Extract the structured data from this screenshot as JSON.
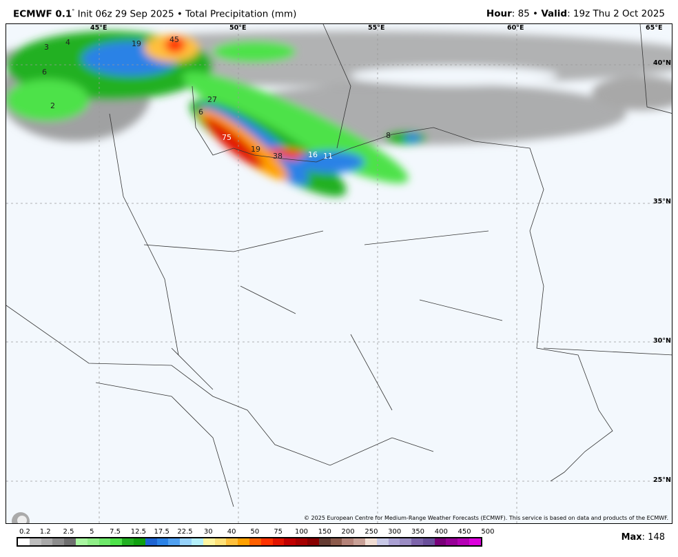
{
  "header": {
    "model": "ECMWF 0.1",
    "degree": "°",
    "init": " Init 06z 29 Sep 2025 • Total Precipitation (mm)",
    "hour_label": "Hour",
    "hour_value": ": 85 • ",
    "valid_label": "Valid",
    "valid_value": ": 19z Thu 2 Oct 2025"
  },
  "map": {
    "longitudes": [
      "45°E",
      "50°E",
      "55°E",
      "60°E",
      "65°E"
    ],
    "latitudes": [
      "40°N",
      "35°N",
      "30°N",
      "25°N"
    ],
    "precip_labels": [
      "3",
      "4",
      "6",
      "2",
      "19",
      "45",
      "27",
      "6",
      "75",
      "19",
      "38",
      "16",
      "11",
      "8"
    ],
    "copyright": "© 2025 European Centre for Medium-Range Weather Forecasts (ECMWF). This service is based on data and products of the ECMWF.",
    "logo": "WeatherBELL",
    "background_color": "#f3f8fd"
  },
  "legend": {
    "ticks": [
      "0.2",
      "1.2",
      "2.5",
      "5",
      "7.5",
      "12.5",
      "17.5",
      "22.5",
      "30",
      "40",
      "50",
      "75",
      "100",
      "150",
      "200",
      "250",
      "300",
      "350",
      "400",
      "450",
      "500"
    ],
    "colors": [
      "#ffffff",
      "#bdbdbd",
      "#a8a8a8",
      "#8c8c8c",
      "#6e6e6e",
      "#a8f5a0",
      "#8fee87",
      "#6ee86a",
      "#4ee24a",
      "#22b022",
      "#10a010",
      "#1e64d2",
      "#2b82e6",
      "#50a0f0",
      "#96d2fa",
      "#b4f0fa",
      "#fff5a0",
      "#ffe178",
      "#ffc03c",
      "#ffa000",
      "#ff6000",
      "#ff3200",
      "#e11400",
      "#c00000",
      "#a50000",
      "#870000",
      "#643b32",
      "#8c5a4b",
      "#b48278",
      "#c8a096",
      "#f0dcd2",
      "#c8c8e6",
      "#aaa0d2",
      "#9b8cc3",
      "#7d64aa",
      "#6a4f9a",
      "#780078",
      "#960096",
      "#b400b4",
      "#dc00dc"
    ],
    "max_label": "Max",
    "max_value": ": 148"
  }
}
